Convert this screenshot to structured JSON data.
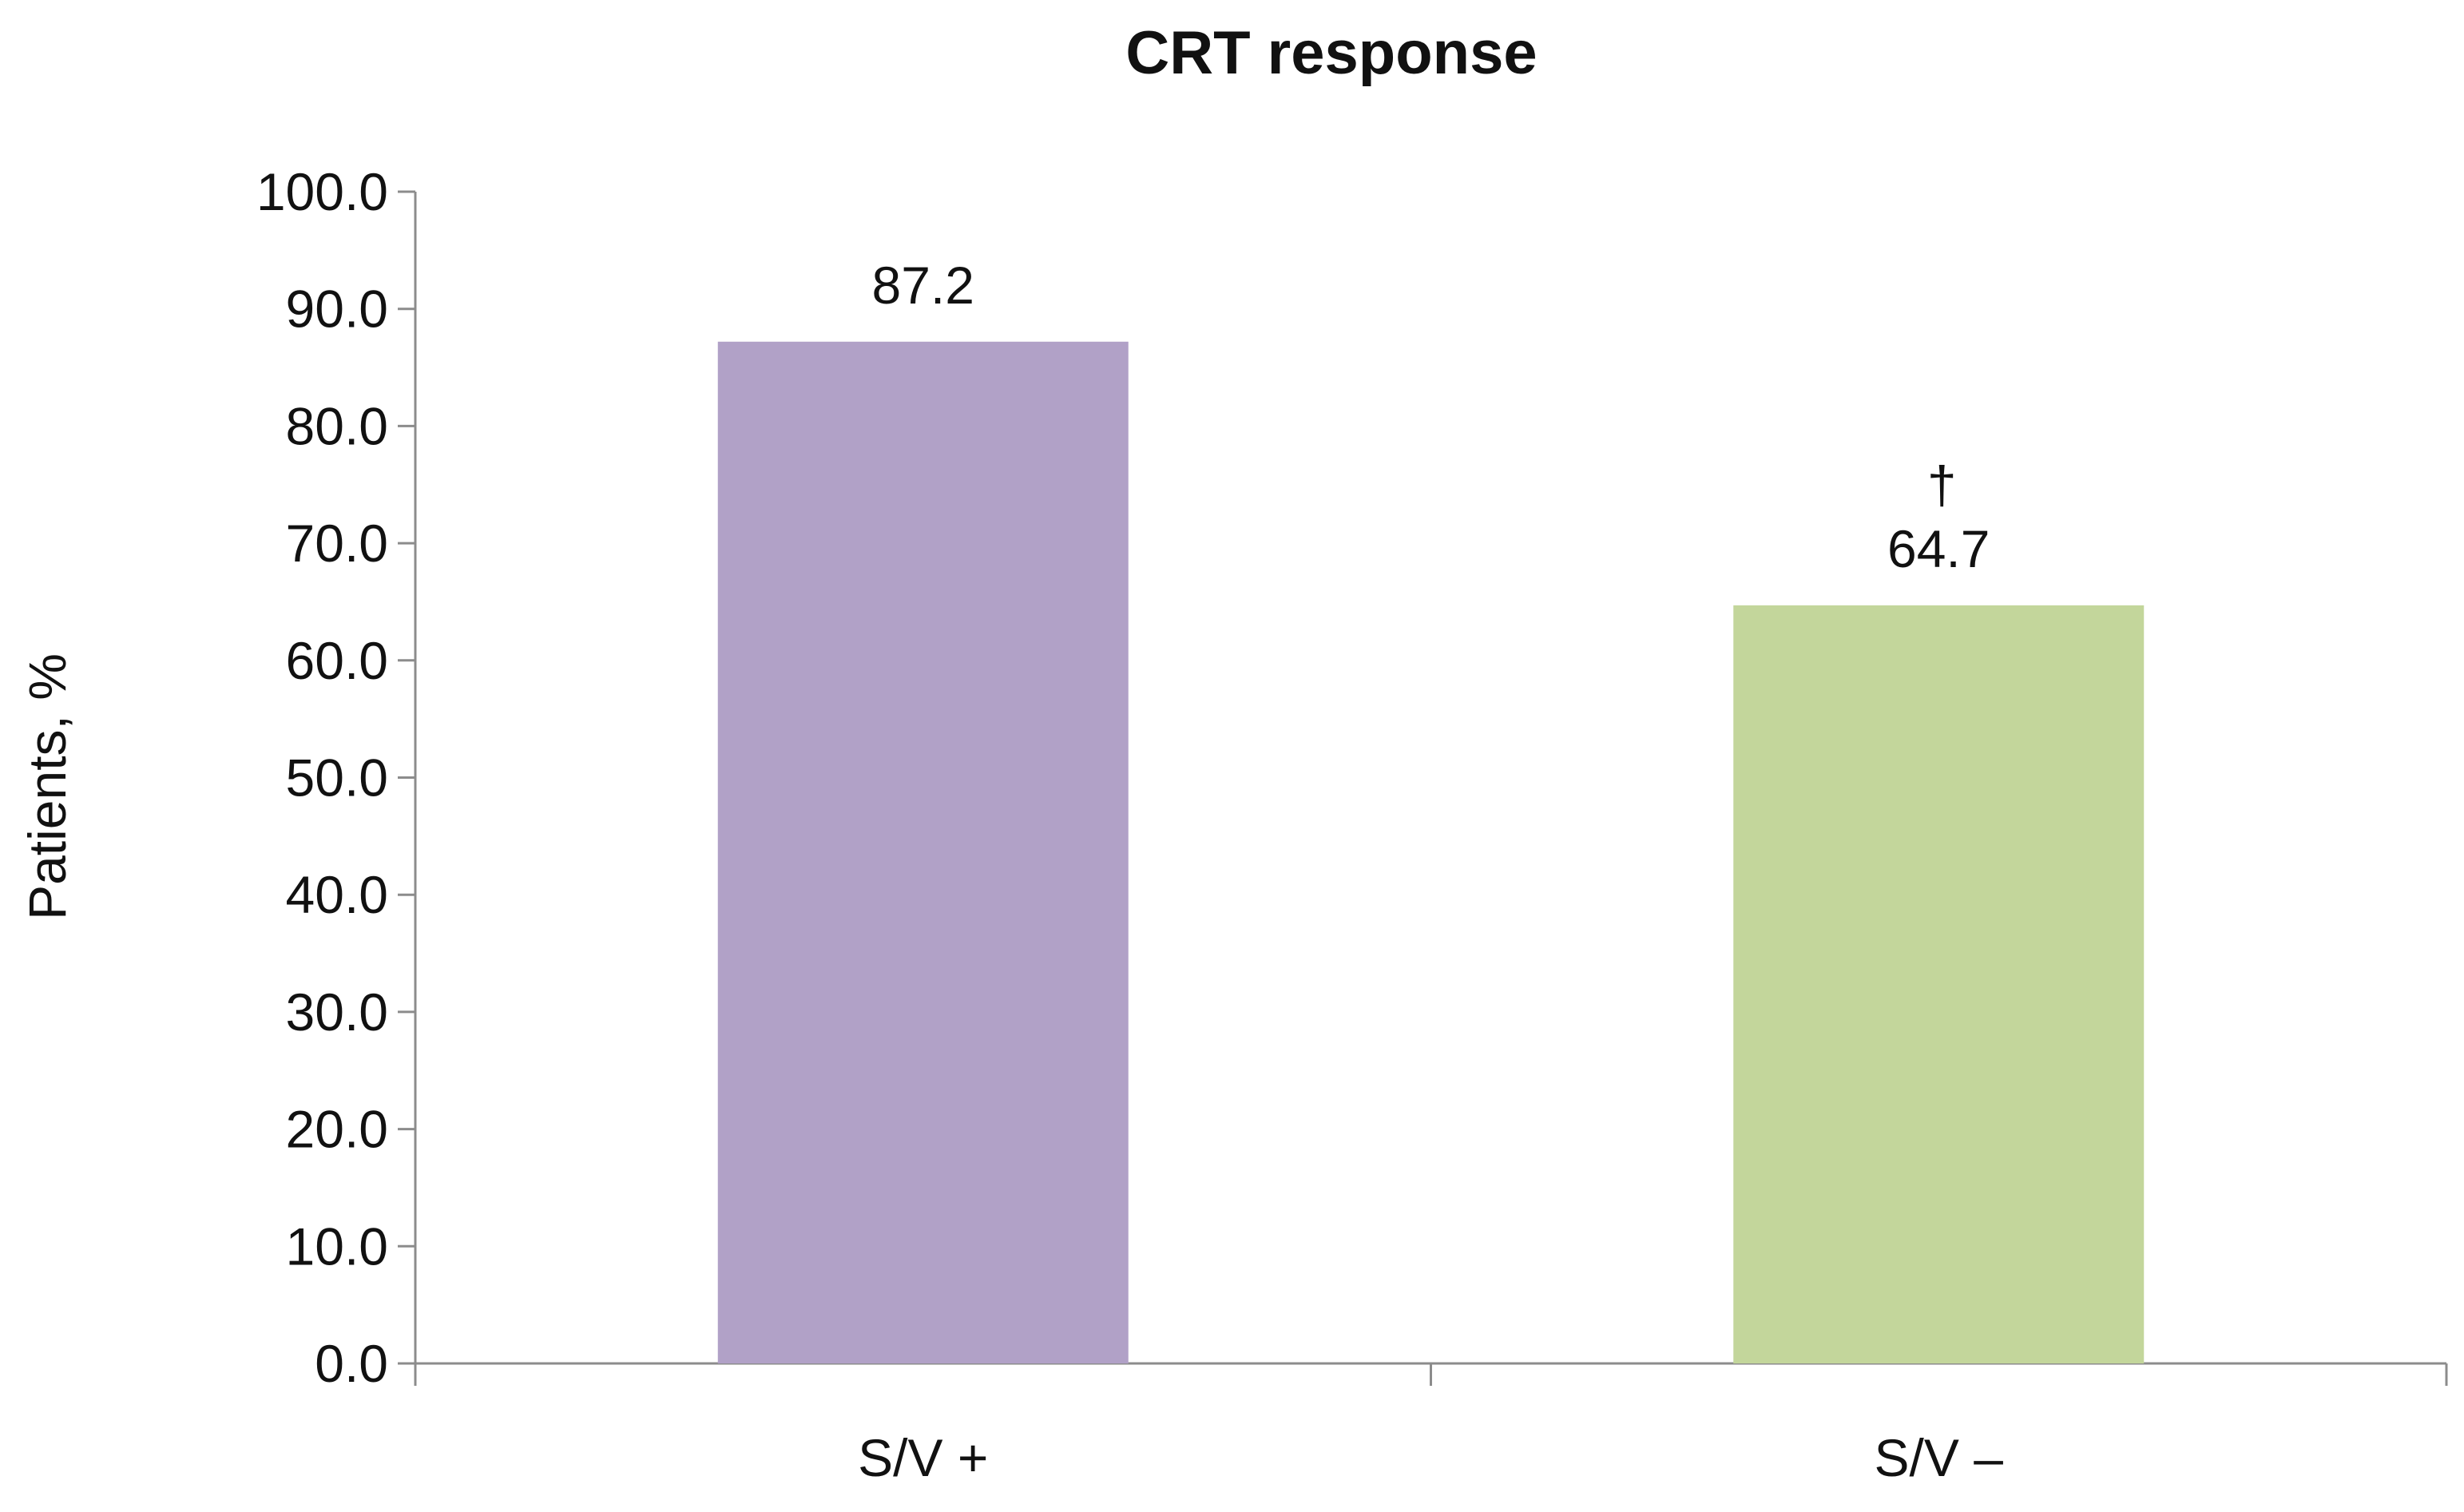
{
  "chart_data": {
    "type": "bar",
    "title": "CRT response",
    "xlabel": "",
    "ylabel": "Patients, %",
    "ylim": [
      0,
      100
    ],
    "yticks": [
      "0.0",
      "10.0",
      "20.0",
      "30.0",
      "40.0",
      "50.0",
      "60.0",
      "70.0",
      "80.0",
      "90.0",
      "100.0"
    ],
    "categories": [
      "S/V +",
      "S/V –"
    ],
    "values": [
      87.2,
      64.7
    ],
    "value_labels": [
      "87.2",
      "64.7"
    ],
    "annotations": [
      "",
      "†"
    ],
    "colors": [
      "#b1a1c7",
      "#c3d69b"
    ],
    "grid": false,
    "legend": "none"
  }
}
